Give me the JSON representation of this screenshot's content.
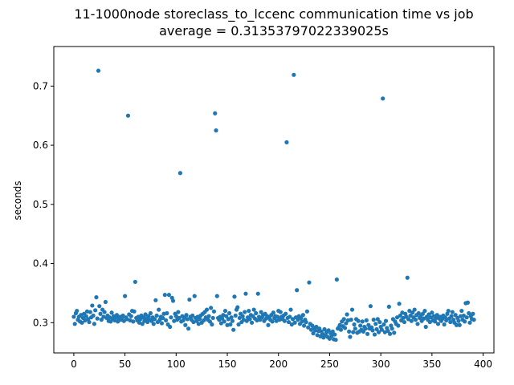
{
  "chart_data": {
    "type": "scatter",
    "title": "11-1000node storeclass_to_lccenc communication time vs job",
    "subtitle": "average = 0.31353797022339025s",
    "y_label": "seconds",
    "color": "#1f77b4",
    "xlim": [
      -19.55,
      410.55
    ],
    "ylim": [
      0.2489,
      0.7669
    ],
    "xticks": [
      0,
      50,
      100,
      150,
      200,
      250,
      300,
      350,
      400
    ],
    "yticks": [
      0.3,
      0.4,
      0.5,
      0.6,
      0.7
    ],
    "x": [
      0,
      1,
      2,
      3,
      4,
      5,
      6,
      7,
      8,
      9,
      10,
      11,
      12,
      13,
      14,
      15,
      16,
      17,
      18,
      19,
      20,
      21,
      22,
      23,
      24,
      25,
      26,
      27,
      28,
      29,
      30,
      31,
      32,
      33,
      34,
      35,
      36,
      37,
      38,
      39,
      40,
      41,
      42,
      43,
      44,
      45,
      46,
      47,
      48,
      49,
      50,
      51,
      52,
      53,
      54,
      55,
      56,
      57,
      58,
      59,
      60,
      61,
      62,
      63,
      64,
      65,
      66,
      67,
      68,
      69,
      70,
      71,
      72,
      73,
      74,
      75,
      76,
      77,
      78,
      79,
      80,
      81,
      82,
      83,
      84,
      85,
      86,
      87,
      88,
      89,
      90,
      91,
      92,
      93,
      94,
      95,
      96,
      97,
      98,
      99,
      100,
      101,
      102,
      103,
      104,
      105,
      106,
      107,
      108,
      109,
      110,
      111,
      112,
      113,
      114,
      115,
      116,
      117,
      118,
      119,
      120,
      121,
      122,
      123,
      124,
      125,
      126,
      127,
      128,
      129,
      130,
      131,
      132,
      133,
      134,
      135,
      136,
      137,
      138,
      139,
      140,
      141,
      142,
      143,
      144,
      145,
      146,
      147,
      148,
      149,
      150,
      151,
      152,
      153,
      154,
      155,
      156,
      157,
      158,
      159,
      160,
      161,
      162,
      163,
      164,
      165,
      166,
      167,
      168,
      169,
      170,
      171,
      172,
      173,
      174,
      175,
      176,
      177,
      178,
      179,
      180,
      181,
      182,
      183,
      184,
      185,
      186,
      187,
      188,
      189,
      190,
      191,
      192,
      193,
      194,
      195,
      196,
      197,
      198,
      199,
      200,
      201,
      202,
      203,
      204,
      205,
      206,
      207,
      208,
      209,
      210,
      211,
      212,
      213,
      214,
      215,
      216,
      217,
      218,
      219,
      220,
      221,
      222,
      223,
      224,
      225,
      226,
      227,
      228,
      229,
      230,
      231,
      232,
      233,
      234,
      235,
      236,
      237,
      238,
      239,
      240,
      241,
      242,
      243,
      244,
      245,
      246,
      247,
      248,
      249,
      250,
      251,
      252,
      253,
      254,
      255,
      256,
      257,
      258,
      259,
      260,
      261,
      262,
      263,
      264,
      265,
      266,
      267,
      268,
      269,
      270,
      271,
      272,
      273,
      274,
      275,
      276,
      277,
      278,
      279,
      280,
      281,
      282,
      283,
      284,
      285,
      286,
      287,
      288,
      289,
      290,
      291,
      292,
      293,
      294,
      295,
      296,
      297,
      298,
      299,
      300,
      301,
      302,
      303,
      304,
      305,
      306,
      307,
      308,
      309,
      310,
      311,
      312,
      313,
      314,
      315,
      316,
      317,
      318,
      319,
      320,
      321,
      322,
      323,
      324,
      325,
      326,
      327,
      328,
      329,
      330,
      331,
      332,
      333,
      334,
      335,
      336,
      337,
      338,
      339,
      340,
      341,
      342,
      343,
      344,
      345,
      346,
      347,
      348,
      349,
      350,
      351,
      352,
      353,
      354,
      355,
      356,
      357,
      358,
      359,
      360,
      361,
      362,
      363,
      364,
      365,
      366,
      367,
      368,
      369,
      370,
      371,
      372,
      373,
      374,
      375,
      376,
      377,
      378,
      379,
      380,
      381,
      382,
      383,
      384,
      385,
      386,
      387,
      388,
      389,
      390,
      391
    ],
    "values": [
      0.31,
      0.298,
      0.316,
      0.32,
      0.305,
      0.31,
      0.302,
      0.313,
      0.3,
      0.308,
      0.315,
      0.304,
      0.311,
      0.319,
      0.306,
      0.301,
      0.318,
      0.309,
      0.329,
      0.312,
      0.298,
      0.321,
      0.343,
      0.307,
      0.726,
      0.328,
      0.315,
      0.305,
      0.322,
      0.31,
      0.318,
      0.335,
      0.308,
      0.312,
      0.303,
      0.309,
      0.302,
      0.317,
      0.306,
      0.311,
      0.304,
      0.309,
      0.313,
      0.302,
      0.307,
      0.31,
      0.305,
      0.308,
      0.312,
      0.303,
      0.345,
      0.309,
      0.306,
      0.65,
      0.314,
      0.304,
      0.311,
      0.32,
      0.302,
      0.319,
      0.369,
      0.308,
      0.304,
      0.31,
      0.3,
      0.306,
      0.312,
      0.298,
      0.309,
      0.303,
      0.314,
      0.307,
      0.301,
      0.311,
      0.305,
      0.316,
      0.303,
      0.309,
      0.298,
      0.306,
      0.338,
      0.312,
      0.301,
      0.322,
      0.305,
      0.31,
      0.299,
      0.308,
      0.315,
      0.347,
      0.304,
      0.316,
      0.297,
      0.347,
      0.293,
      0.309,
      0.342,
      0.337,
      0.303,
      0.315,
      0.311,
      0.305,
      0.318,
      0.308,
      0.553,
      0.302,
      0.311,
      0.304,
      0.309,
      0.296,
      0.313,
      0.306,
      0.29,
      0.339,
      0.31,
      0.305,
      0.312,
      0.301,
      0.345,
      0.308,
      0.303,
      0.31,
      0.298,
      0.306,
      0.312,
      0.3,
      0.315,
      0.304,
      0.318,
      0.309,
      0.322,
      0.305,
      0.311,
      0.302,
      0.325,
      0.297,
      0.308,
      0.319,
      0.654,
      0.625,
      0.345,
      0.308,
      0.305,
      0.31,
      0.299,
      0.307,
      0.313,
      0.302,
      0.32,
      0.311,
      0.296,
      0.306,
      0.316,
      0.297,
      0.309,
      0.303,
      0.288,
      0.344,
      0.312,
      0.322,
      0.326,
      0.297,
      0.308,
      0.315,
      0.301,
      0.311,
      0.305,
      0.318,
      0.349,
      0.303,
      0.309,
      0.32,
      0.306,
      0.313,
      0.3,
      0.311,
      0.322,
      0.307,
      0.316,
      0.304,
      0.349,
      0.31,
      0.305,
      0.318,
      0.309,
      0.313,
      0.303,
      0.315,
      0.307,
      0.311,
      0.296,
      0.309,
      0.305,
      0.313,
      0.302,
      0.317,
      0.308,
      0.311,
      0.303,
      0.31,
      0.32,
      0.305,
      0.318,
      0.31,
      0.306,
      0.312,
      0.303,
      0.315,
      0.605,
      0.308,
      0.301,
      0.31,
      0.322,
      0.297,
      0.306,
      0.719,
      0.3,
      0.309,
      0.355,
      0.305,
      0.311,
      0.298,
      0.308,
      0.302,
      0.313,
      0.295,
      0.305,
      0.301,
      0.319,
      0.292,
      0.368,
      0.298,
      0.288,
      0.295,
      0.282,
      0.291,
      0.287,
      0.293,
      0.279,
      0.286,
      0.29,
      0.277,
      0.285,
      0.281,
      0.275,
      0.289,
      0.279,
      0.284,
      0.276,
      0.287,
      0.273,
      0.282,
      0.278,
      0.285,
      0.272,
      0.28,
      0.271,
      0.373,
      0.29,
      0.292,
      0.296,
      0.288,
      0.302,
      0.294,
      0.306,
      0.291,
      0.299,
      0.314,
      0.304,
      0.285,
      0.276,
      0.305,
      0.322,
      0.284,
      0.297,
      0.29,
      0.306,
      0.283,
      0.303,
      0.285,
      0.295,
      0.288,
      0.302,
      0.285,
      0.293,
      0.29,
      0.304,
      0.281,
      0.296,
      0.29,
      0.328,
      0.292,
      0.287,
      0.305,
      0.28,
      0.298,
      0.289,
      0.306,
      0.284,
      0.301,
      0.293,
      0.288,
      0.679,
      0.297,
      0.284,
      0.303,
      0.291,
      0.286,
      0.327,
      0.281,
      0.295,
      0.29,
      0.306,
      0.283,
      0.302,
      0.298,
      0.309,
      0.295,
      0.332,
      0.312,
      0.304,
      0.317,
      0.308,
      0.301,
      0.315,
      0.31,
      0.376,
      0.306,
      0.32,
      0.312,
      0.303,
      0.317,
      0.309,
      0.322,
      0.305,
      0.313,
      0.298,
      0.316,
      0.308,
      0.311,
      0.303,
      0.315,
      0.307,
      0.32,
      0.293,
      0.31,
      0.305,
      0.314,
      0.301,
      0.309,
      0.317,
      0.304,
      0.311,
      0.302,
      0.308,
      0.313,
      0.298,
      0.307,
      0.31,
      0.303,
      0.306,
      0.312,
      0.297,
      0.309,
      0.304,
      0.315,
      0.32,
      0.307,
      0.301,
      0.311,
      0.318,
      0.305,
      0.3,
      0.313,
      0.296,
      0.308,
      0.303,
      0.296,
      0.311,
      0.32,
      0.305,
      0.312,
      0.302,
      0.333,
      0.309,
      0.334,
      0.316,
      0.3,
      0.311,
      0.306,
      0.315,
      0.305
    ]
  }
}
